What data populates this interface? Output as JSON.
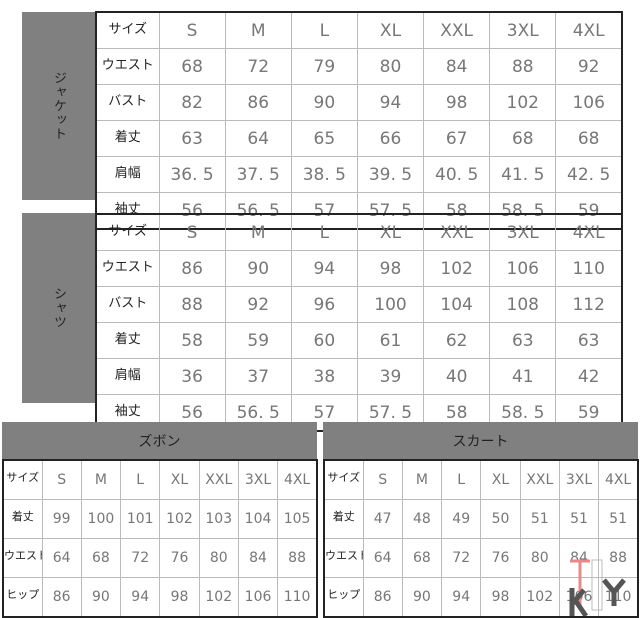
{
  "sizes": [
    "S",
    "M",
    "L",
    "XL",
    "XXL",
    "3XL",
    "4XL"
  ],
  "size_label": "サイズ",
  "jacket": {
    "title": "ジャケット",
    "rows": [
      {
        "label": "ウエスト",
        "values": [
          "68",
          "72",
          "79",
          "80",
          "84",
          "88",
          "92"
        ]
      },
      {
        "label": "バスト",
        "values": [
          "82",
          "86",
          "90",
          "94",
          "98",
          "102",
          "106"
        ]
      },
      {
        "label": "着丈",
        "values": [
          "63",
          "64",
          "65",
          "66",
          "67",
          "68",
          "68"
        ]
      },
      {
        "label": "肩幅",
        "values": [
          "36. 5",
          "37. 5",
          "38. 5",
          "39. 5",
          "40. 5",
          "41. 5",
          "42. 5"
        ]
      },
      {
        "label": "袖丈",
        "values": [
          "56",
          "56. 5",
          "57",
          "57. 5",
          "58",
          "58. 5",
          "59"
        ]
      }
    ]
  },
  "shirt": {
    "title": "シャツ",
    "rows": [
      {
        "label": "ウエスト",
        "values": [
          "86",
          "90",
          "94",
          "98",
          "102",
          "106",
          "110"
        ]
      },
      {
        "label": "バスト",
        "values": [
          "88",
          "92",
          "96",
          "100",
          "104",
          "108",
          "112"
        ]
      },
      {
        "label": "着丈",
        "values": [
          "58",
          "59",
          "60",
          "61",
          "62",
          "63",
          "63"
        ]
      },
      {
        "label": "肩幅",
        "values": [
          "36",
          "37",
          "38",
          "39",
          "40",
          "41",
          "42"
        ]
      },
      {
        "label": "袖丈",
        "values": [
          "56",
          "56. 5",
          "57",
          "57. 5",
          "58",
          "58. 5",
          "59"
        ]
      }
    ]
  },
  "pants": {
    "title": "ズボン",
    "rows": [
      {
        "label": "着丈",
        "values": [
          "99",
          "100",
          "101",
          "102",
          "103",
          "104",
          "105"
        ]
      },
      {
        "label": "ウエスト",
        "values": [
          "64",
          "68",
          "72",
          "76",
          "80",
          "84",
          "88"
        ]
      },
      {
        "label": "ヒップ",
        "values": [
          "86",
          "90",
          "94",
          "98",
          "102",
          "106",
          "110"
        ]
      }
    ]
  },
  "skirt": {
    "title": "スカート",
    "rows": [
      {
        "label": "着丈",
        "values": [
          "47",
          "48",
          "49",
          "50",
          "51",
          "51",
          "51"
        ]
      },
      {
        "label": "ウエスト",
        "values": [
          "64",
          "68",
          "72",
          "76",
          "80",
          "84",
          "88"
        ]
      },
      {
        "label": "ヒップ",
        "values": [
          "86",
          "90",
          "94",
          "98",
          "102",
          "106",
          "110"
        ]
      }
    ]
  },
  "watermark": {
    "letters": "KTY",
    "colors": {
      "k": "#555555",
      "t": "#e88a8a",
      "y": "#555555"
    }
  }
}
